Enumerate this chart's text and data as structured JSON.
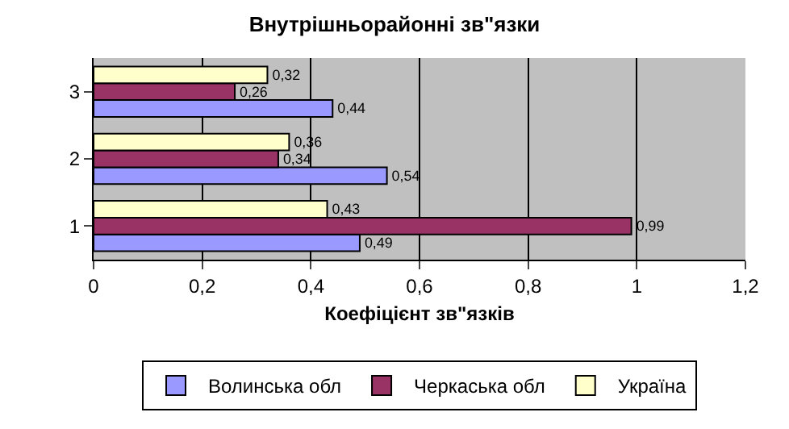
{
  "chart_data": {
    "type": "bar",
    "orientation": "horizontal",
    "title": "Внутрішньорайонні зв\"язки",
    "xlabel": "Коефіцієнт зв\"язків",
    "categories": [
      "3",
      "2",
      "1"
    ],
    "series": [
      {
        "name": "Волинська обл",
        "color": "#9999ff",
        "values": [
          0.44,
          0.54,
          0.49
        ],
        "value_labels": [
          "0,44",
          "0,54",
          "0,49"
        ]
      },
      {
        "name": "Черкаська обл",
        "color": "#993366",
        "values": [
          0.26,
          0.34,
          0.99
        ],
        "value_labels": [
          "0,26",
          "0,34",
          "0,99"
        ]
      },
      {
        "name": "Україна",
        "color": "#ffffcc",
        "values": [
          0.32,
          0.36,
          0.43
        ],
        "value_labels": [
          "0,32",
          "0,36",
          "0,43"
        ]
      }
    ],
    "xlim": [
      0,
      1.2
    ],
    "xticks": [
      {
        "value": 0,
        "label": "0"
      },
      {
        "value": 0.2,
        "label": "0,2"
      },
      {
        "value": 0.4,
        "label": "0,4"
      },
      {
        "value": 0.6,
        "label": "0,6"
      },
      {
        "value": 0.8,
        "label": "0,8"
      },
      {
        "value": 1,
        "label": "1"
      },
      {
        "value": 1.2,
        "label": "1,2"
      }
    ],
    "grid": "x",
    "legend": "bottom"
  }
}
